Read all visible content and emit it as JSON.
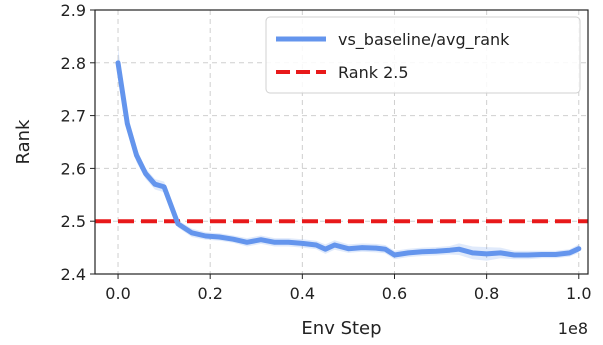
{
  "chart_data": {
    "type": "line",
    "title": "",
    "xlabel": "Env Step",
    "ylabel": "Rank",
    "x_offset_label": "1e8",
    "x_scale": 100000000,
    "xlim": [
      -0.05,
      1.02
    ],
    "ylim": [
      2.4,
      2.9
    ],
    "xticks": [
      0.0,
      0.2,
      0.4,
      0.6,
      0.8,
      1.0
    ],
    "xtick_labels": [
      "0.0",
      "0.2",
      "0.4",
      "0.6",
      "0.8",
      "1.0"
    ],
    "yticks": [
      2.4,
      2.5,
      2.6,
      2.7,
      2.8,
      2.9
    ],
    "ytick_labels": [
      "2.4",
      "2.5",
      "2.6",
      "2.7",
      "2.8",
      "2.9"
    ],
    "grid": true,
    "legend_position": "top-right",
    "series": [
      {
        "name": "vs_baseline/avg_rank",
        "color": "#6495ED",
        "style": "solid",
        "x": [
          0.0,
          0.02,
          0.04,
          0.06,
          0.08,
          0.1,
          0.13,
          0.16,
          0.19,
          0.22,
          0.25,
          0.28,
          0.31,
          0.34,
          0.37,
          0.4,
          0.43,
          0.45,
          0.47,
          0.5,
          0.53,
          0.56,
          0.58,
          0.6,
          0.63,
          0.66,
          0.69,
          0.72,
          0.74,
          0.77,
          0.8,
          0.83,
          0.86,
          0.89,
          0.92,
          0.95,
          0.98,
          1.0
        ],
        "y": [
          2.8,
          2.685,
          2.625,
          2.59,
          2.57,
          2.565,
          2.495,
          2.478,
          2.472,
          2.47,
          2.466,
          2.46,
          2.465,
          2.46,
          2.46,
          2.458,
          2.455,
          2.447,
          2.455,
          2.448,
          2.45,
          2.449,
          2.447,
          2.436,
          2.44,
          2.442,
          2.443,
          2.445,
          2.447,
          2.44,
          2.438,
          2.44,
          2.436,
          2.436,
          2.437,
          2.437,
          2.44,
          2.448
        ],
        "band_lower": [
          2.775,
          2.67,
          2.612,
          2.58,
          2.56,
          2.555,
          2.488,
          2.47,
          2.465,
          2.463,
          2.459,
          2.452,
          2.457,
          2.452,
          2.452,
          2.45,
          2.447,
          2.438,
          2.446,
          2.44,
          2.442,
          2.441,
          2.439,
          2.428,
          2.432,
          2.434,
          2.435,
          2.437,
          2.436,
          2.428,
          2.425,
          2.43,
          2.428,
          2.428,
          2.43,
          2.43,
          2.433,
          2.44
        ],
        "band_upper": [
          2.83,
          2.7,
          2.638,
          2.6,
          2.58,
          2.575,
          2.502,
          2.486,
          2.479,
          2.477,
          2.473,
          2.468,
          2.473,
          2.468,
          2.468,
          2.466,
          2.463,
          2.456,
          2.464,
          2.456,
          2.458,
          2.457,
          2.455,
          2.444,
          2.448,
          2.45,
          2.451,
          2.453,
          2.458,
          2.452,
          2.451,
          2.45,
          2.444,
          2.444,
          2.444,
          2.444,
          2.447,
          2.456
        ]
      },
      {
        "name": "Rank 2.5",
        "color": "#E8191A",
        "style": "dashed",
        "y_constant": 2.5
      }
    ]
  }
}
